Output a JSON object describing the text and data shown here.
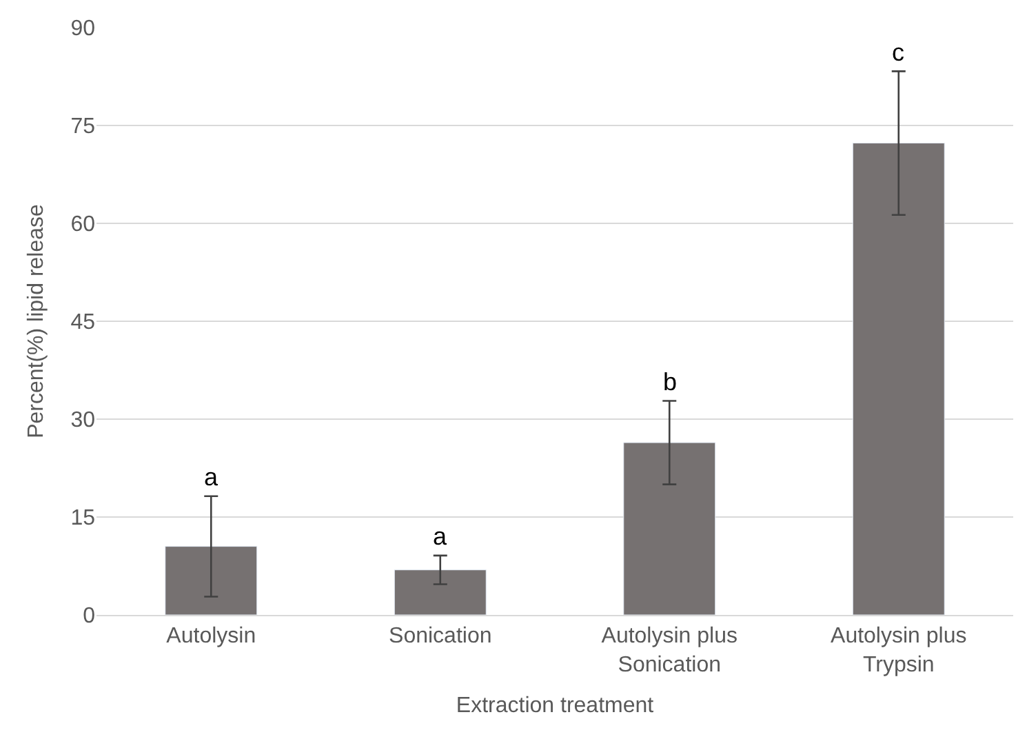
{
  "chart_data": {
    "type": "bar",
    "xlabel": "Extraction treatment",
    "ylabel": "Percent(%) lipid release",
    "categories": [
      "Autolysin",
      "Sonication",
      "Autolysin plus\nSonication",
      "Autolysin plus\nTrypsin"
    ],
    "values": [
      10.5,
      6.9,
      26.4,
      72.3
    ],
    "errors": [
      7.7,
      2.2,
      6.4,
      11
    ],
    "color": "#767171",
    "ylim": [
      0,
      90
    ],
    "yticks": [
      0,
      15,
      30,
      45,
      60,
      75,
      90
    ],
    "grid": "y",
    "legend": false,
    "annotations": [
      {
        "text": "a",
        "x": "Autolysin",
        "y": 18.2
      },
      {
        "text": "a",
        "x": "Sonication",
        "y": 9.1
      },
      {
        "text": "b",
        "x": "Autolysin plus\nSonication",
        "y": 32.8
      },
      {
        "text": "c",
        "x": "Autolysin plus\nTrypsin",
        "y": 83.3
      }
    ]
  }
}
